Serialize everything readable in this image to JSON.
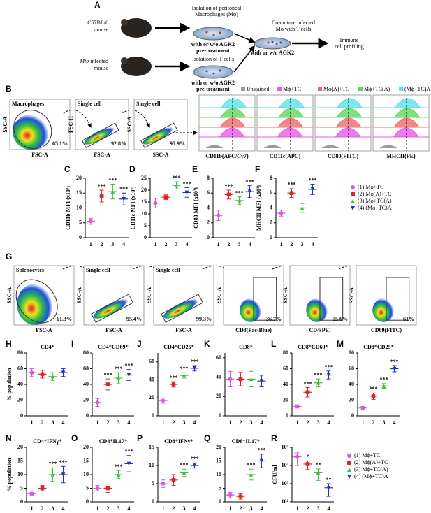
{
  "panel_a": {
    "label": "A",
    "mouse1": "C57BL/6",
    "mouse1b": "mouse",
    "mouse2_italic": "Mtb",
    "mouse2": "infected",
    "mouse2b": "mouse",
    "step1": [
      "Isolation of peritoneal",
      "Macrophages (Mϕ)"
    ],
    "step1_note": [
      "with or w/o AGK2",
      "pre-treatment"
    ],
    "step2": [
      "Isolation of T cells"
    ],
    "step2_note": [
      "with or w/o AGK2",
      "pre-treatment"
    ],
    "step3": [
      "Co-culture infected",
      "Mϕ with T cells"
    ],
    "step3_note": [
      "with or w/o AGK2"
    ],
    "step4": [
      "Immune",
      "cell profiling"
    ]
  },
  "panel_b": {
    "label": "B",
    "flow": [
      {
        "gate": "Macrophages",
        "pct": "65.1%",
        "xlabel": "FSC-A",
        "ylabel": "SSC-A"
      },
      {
        "gate": "Single cell",
        "pct": "92.8%",
        "xlabel": "FSC-A",
        "ylabel": "FSC-H"
      },
      {
        "gate": "Single cell",
        "pct": "95.9%",
        "xlabel": "SSC-A",
        "ylabel": "SSC-A"
      }
    ],
    "hist_legend": {
      "names": [
        "Unstained",
        "Mϕ+TC",
        "Mϕ(A)+TC",
        "Mϕ+TC(A)",
        "(Mϕ+TC)A"
      ],
      "colors": [
        "#9a9a9a",
        "#e65ce6",
        "#f06a6a",
        "#5fd65f",
        "#5ee0e8"
      ]
    },
    "hist_xlabels": [
      "CD11b(APC/Cy7)",
      "CD11c(APC)",
      "CD80(FITC)",
      "MHCII(PE)"
    ]
  },
  "panel_g": {
    "label": "G",
    "flow": [
      {
        "gate": "Splenocytes",
        "pct": "61.3%",
        "xlabel": "FSC-A",
        "ylabel": "SSC-A"
      },
      {
        "gate": "Single cell",
        "pct": "95.4%",
        "xlabel": "FSC-A",
        "ylabel": "SSC-A"
      },
      {
        "gate": "Single cell",
        "pct": "99.3%",
        "xlabel": "FSC-A",
        "ylabel": "SSC-A"
      },
      {
        "pct": "36.7%",
        "xlabel": "CD3(Pac-Blue)",
        "ylabel": "SSC-A"
      },
      {
        "pct": "55.6%",
        "xlabel": "CD4(PE)",
        "ylabel": "SSC-A"
      },
      {
        "pct": "61%",
        "xlabel": "CD69(FITC)",
        "ylabel": "SSC-A"
      }
    ]
  },
  "legend_cf": {
    "items": [
      "(1) Mϕ+TC",
      "(2) Mϕ(A)+TC",
      "(3) Mϕ+TC(A)",
      "(4) (Mϕ+TC)A"
    ],
    "colors": [
      "#d957d9",
      "#d62828",
      "#3fbf3f",
      "#2233bb"
    ]
  },
  "legend_r": {
    "items": [
      "(1) Mϕ+TC",
      "(2) Mϕ(A)+TC",
      "(3) Mϕ+TC(A)",
      "(4) (Mϕ+TC)A"
    ]
  },
  "chart_data": [
    {
      "type": "dot",
      "label": "C",
      "ylabel": "CD11b MFI (x10³)",
      "categories": [
        "1",
        "2",
        "3",
        "4"
      ],
      "values": [
        5.5,
        14,
        15.5,
        13
      ],
      "errors": [
        1,
        2,
        2.5,
        2
      ],
      "sig": [
        null,
        "***",
        "***",
        "***"
      ],
      "ylim": [
        0,
        20
      ],
      "yticks": [
        0,
        5,
        10,
        15,
        20
      ]
    },
    {
      "type": "dot",
      "label": "D",
      "ylabel": "CD11c MFI (x10³)",
      "categories": [
        "1",
        "2",
        "3",
        "4"
      ],
      "values": [
        14.5,
        17,
        22,
        19
      ],
      "errors": [
        2,
        1,
        1.5,
        2
      ],
      "sig": [
        null,
        null,
        "***",
        "***"
      ],
      "ylim": [
        0,
        25
      ],
      "yticks": [
        0,
        5,
        10,
        15,
        20,
        25
      ]
    },
    {
      "type": "dot",
      "label": "E",
      "ylabel": "CD80 MFI (x10³)",
      "categories": [
        "1",
        "2",
        "3",
        "4"
      ],
      "values": [
        3,
        5.8,
        5,
        6.2
      ],
      "errors": [
        0.7,
        0.6,
        0.5,
        0.8
      ],
      "sig": [
        null,
        "***",
        "***",
        "***"
      ],
      "ylim": [
        0,
        8
      ],
      "yticks": [
        0,
        2,
        4,
        6,
        8
      ]
    },
    {
      "type": "dot",
      "label": "F",
      "ylabel": "MHCII MFI (x10³)",
      "categories": [
        "1",
        "2",
        "3",
        "4"
      ],
      "values": [
        3.3,
        6,
        4,
        6.5
      ],
      "errors": [
        0.4,
        0.6,
        0.6,
        0.7
      ],
      "sig": [
        null,
        "***",
        null,
        "***"
      ],
      "ylim": [
        0,
        8
      ],
      "yticks": [
        0,
        2,
        4,
        6,
        8
      ]
    },
    {
      "type": "dot",
      "label": "H",
      "title": "CD4⁺",
      "ylabel": "% population",
      "categories": [
        "1",
        "2",
        "3",
        "4"
      ],
      "values": [
        55,
        53,
        50,
        55
      ],
      "errors": [
        5,
        5,
        5,
        5
      ],
      "sig": [
        null,
        null,
        null,
        null
      ],
      "ylim": [
        0,
        80
      ],
      "yticks": [
        0,
        20,
        40,
        60,
        80
      ]
    },
    {
      "type": "dot",
      "label": "I",
      "title": "CD4⁺CD69⁺",
      "categories": [
        "1",
        "2",
        "3",
        "4"
      ],
      "values": [
        17,
        40,
        48,
        52
      ],
      "errors": [
        5,
        7,
        7,
        7
      ],
      "sig": [
        null,
        "***",
        "***",
        "***"
      ],
      "ylim": [
        0,
        80
      ],
      "yticks": [
        0,
        20,
        40,
        60,
        80
      ]
    },
    {
      "type": "dot",
      "label": "J",
      "title": "CD4⁺CD25⁺",
      "categories": [
        "1",
        "2",
        "3",
        "4"
      ],
      "values": [
        17,
        35,
        45,
        53
      ],
      "errors": [
        3,
        3,
        3,
        3
      ],
      "sig": [
        null,
        "***",
        "***",
        "***"
      ],
      "ylim": [
        0,
        70
      ],
      "yticks": [
        0,
        20,
        40,
        60
      ]
    },
    {
      "type": "dot",
      "label": "K",
      "title": "CD8⁺",
      "categories": [
        "1",
        "2",
        "3",
        "4"
      ],
      "values": [
        38,
        38,
        38,
        36
      ],
      "errors": [
        8,
        7,
        8,
        6
      ],
      "sig": [
        null,
        null,
        null,
        null
      ],
      "ylim": [
        0,
        65
      ],
      "yticks": [
        0,
        20,
        40,
        60
      ]
    },
    {
      "type": "dot",
      "label": "L",
      "title": "CD8⁺CD69⁺",
      "categories": [
        "1",
        "2",
        "3",
        "4"
      ],
      "values": [
        12,
        30,
        42,
        52
      ],
      "errors": [
        2,
        6,
        5,
        5
      ],
      "sig": [
        null,
        "***",
        "***",
        "***"
      ],
      "ylim": [
        0,
        80
      ],
      "yticks": [
        0,
        20,
        40,
        60,
        80
      ]
    },
    {
      "type": "dot",
      "label": "M",
      "title": "CD8⁺CD25⁺",
      "categories": [
        "1",
        "2",
        "3",
        "4"
      ],
      "values": [
        10,
        25,
        38,
        60
      ],
      "errors": [
        2,
        4,
        3,
        4
      ],
      "sig": [
        null,
        "***",
        "***",
        "***"
      ],
      "ylim": [
        0,
        80
      ],
      "yticks": [
        0,
        20,
        40,
        60,
        80
      ]
    },
    {
      "type": "dot",
      "label": "N",
      "title": "CD4⁺IFNγ⁺",
      "ylabel": "% population",
      "categories": [
        "1",
        "2",
        "3",
        "4"
      ],
      "values": [
        3,
        5,
        10,
        10
      ],
      "errors": [
        0.5,
        1,
        2.5,
        3
      ],
      "sig": [
        null,
        null,
        "***",
        "***"
      ],
      "ylim": [
        0,
        20
      ],
      "yticks": [
        0,
        5,
        10,
        15,
        20
      ]
    },
    {
      "type": "dot",
      "label": "O",
      "title": "CD4⁺IL17⁺",
      "categories": [
        "1",
        "2",
        "3",
        "4"
      ],
      "values": [
        5,
        5,
        10,
        14
      ],
      "errors": [
        1,
        1.5,
        1.5,
        3
      ],
      "sig": [
        null,
        null,
        "***",
        "***"
      ],
      "ylim": [
        0,
        20
      ],
      "yticks": [
        0,
        5,
        10,
        15,
        20
      ]
    },
    {
      "type": "dot",
      "label": "P",
      "title": "CD8⁺IFNγ⁺",
      "categories": [
        "1",
        "2",
        "3",
        "4"
      ],
      "values": [
        5,
        6,
        8,
        10
      ],
      "errors": [
        1,
        1.5,
        1,
        0.7
      ],
      "sig": [
        null,
        null,
        "***",
        "***"
      ],
      "ylim": [
        0,
        15
      ],
      "yticks": [
        0,
        5,
        10,
        15
      ]
    },
    {
      "type": "dot",
      "label": "Q",
      "title": "CD8⁺IL17⁺",
      "categories": [
        "1",
        "2",
        "3",
        "4"
      ],
      "values": [
        2.5,
        2,
        10,
        15
      ],
      "errors": [
        1,
        1,
        2,
        2.5
      ],
      "sig": [
        null,
        null,
        "***",
        "***"
      ],
      "ylim": [
        0,
        20
      ],
      "yticks": [
        0,
        5,
        10,
        15,
        20
      ]
    },
    {
      "type": "dot",
      "label": "R",
      "ylabel": "CFU/ml",
      "log": true,
      "categories": [
        "1",
        "2",
        "3",
        "4"
      ],
      "values": [
        30000,
        12000,
        4000,
        600
      ],
      "errors": [
        20000,
        6000,
        2500,
        400
      ],
      "sig": [
        null,
        "*",
        "**",
        "**"
      ],
      "ylim": [
        100,
        100000
      ],
      "yticks": [
        {
          "value": 100,
          "label": "10²"
        },
        {
          "value": 1000,
          "label": "10³"
        },
        {
          "value": 10000,
          "label": "10⁴"
        },
        {
          "value": 100000,
          "label": "10⁵"
        }
      ]
    }
  ]
}
